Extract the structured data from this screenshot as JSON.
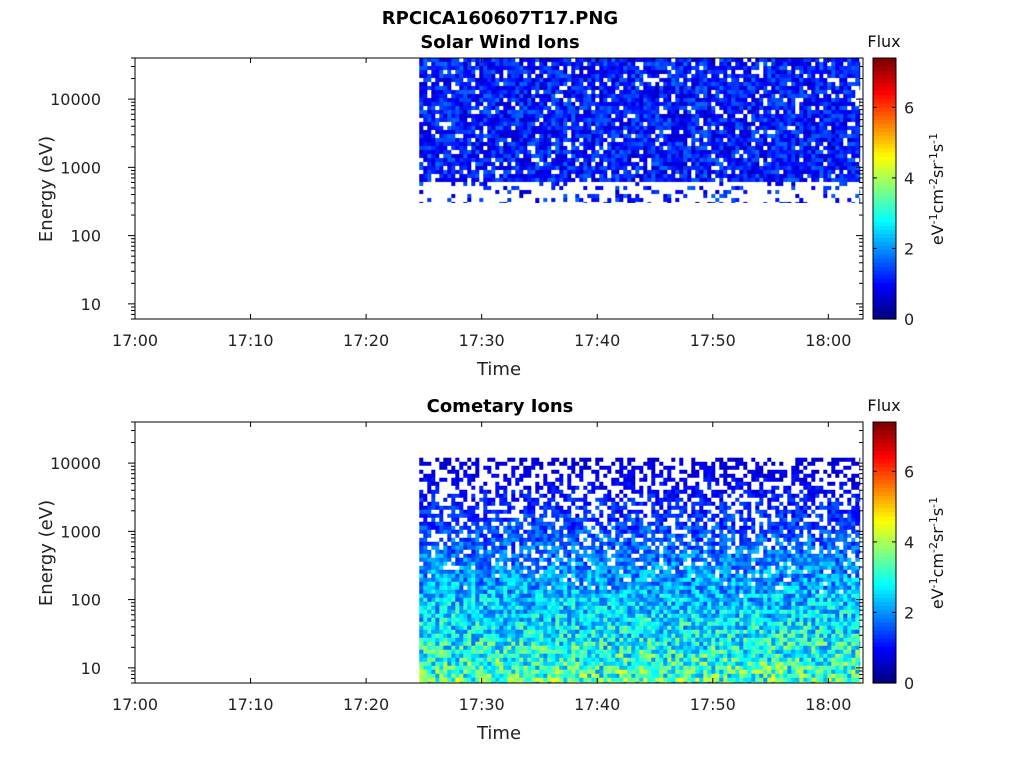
{
  "figure_title": "RPCICA160607T17.PNG",
  "chart_data": [
    {
      "type": "heatmap",
      "title": "Solar Wind Ions",
      "xlabel": "Time",
      "ylabel": "Energy (eV)",
      "x_ticks": [
        "17:00",
        "17:10",
        "17:20",
        "17:30",
        "17:40",
        "17:50",
        "18:00"
      ],
      "y_ticks": [
        "10",
        "100",
        "1000",
        "10000"
      ],
      "yscale": "log",
      "x_range": [
        "17:00",
        "18:03"
      ],
      "y_range_eV": [
        6,
        40000
      ],
      "data_start": "17:24.6",
      "data_end": "18:02.8",
      "energy_band_eV": [
        300,
        40000
      ],
      "typical_flux": 1.0,
      "colorbar": {
        "title": "Flux",
        "label": "eV-1cm-2sr-1s-1",
        "ticks": [
          "0",
          "2",
          "4",
          "6"
        ],
        "range": [
          0,
          7.4
        ],
        "colormap": "jet"
      }
    },
    {
      "type": "heatmap",
      "title": "Cometary Ions",
      "xlabel": "Time",
      "ylabel": "Energy (eV)",
      "x_ticks": [
        "17:00",
        "17:10",
        "17:20",
        "17:30",
        "17:40",
        "17:50",
        "18:00"
      ],
      "y_ticks": [
        "10",
        "100",
        "1000",
        "10000"
      ],
      "yscale": "log",
      "x_range": [
        "17:00",
        "18:03"
      ],
      "y_range_eV": [
        6,
        40000
      ],
      "data_start": "17:24.6",
      "data_end": "18:02.8",
      "energy_band_eV": [
        6,
        12000
      ],
      "typical_flux": 2.2,
      "colorbar": {
        "title": "Flux",
        "label": "eV-1cm-2sr-1s-1",
        "ticks": [
          "0",
          "2",
          "4",
          "6"
        ],
        "range": [
          0,
          7.4
        ],
        "colormap": "jet"
      }
    }
  ]
}
